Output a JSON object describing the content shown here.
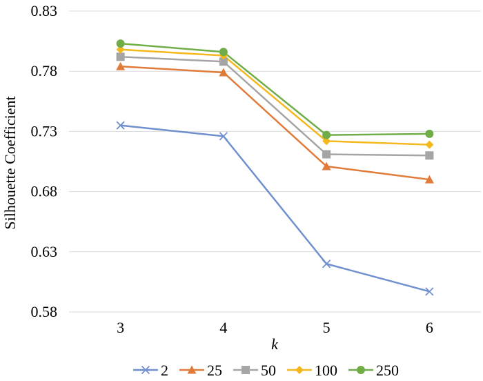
{
  "chart_data": {
    "type": "line",
    "xlabel": "k",
    "ylabel": "Silhouette Coefficient",
    "categories": [
      "3",
      "4",
      "5",
      "6"
    ],
    "ylim": [
      0.58,
      0.83
    ],
    "yticks": [
      "0.58",
      "0.63",
      "0.68",
      "0.73",
      "0.78",
      "0.83"
    ],
    "grid": "horizontal",
    "legend_position": "bottom",
    "series": [
      {
        "name": "2",
        "values": [
          0.735,
          0.726,
          0.62,
          0.597
        ],
        "color": "#6F8FCF",
        "marker": "x"
      },
      {
        "name": "25",
        "values": [
          0.784,
          0.779,
          0.701,
          0.69
        ],
        "color": "#E07B39",
        "marker": "triangle"
      },
      {
        "name": "50",
        "values": [
          0.792,
          0.788,
          0.711,
          0.71
        ],
        "color": "#A5A5A5",
        "marker": "square"
      },
      {
        "name": "100",
        "values": [
          0.798,
          0.793,
          0.722,
          0.719
        ],
        "color": "#F4B81C",
        "marker": "diamond"
      },
      {
        "name": "250",
        "values": [
          0.803,
          0.796,
          0.727,
          0.728
        ],
        "color": "#70AD47",
        "marker": "circle"
      }
    ]
  }
}
